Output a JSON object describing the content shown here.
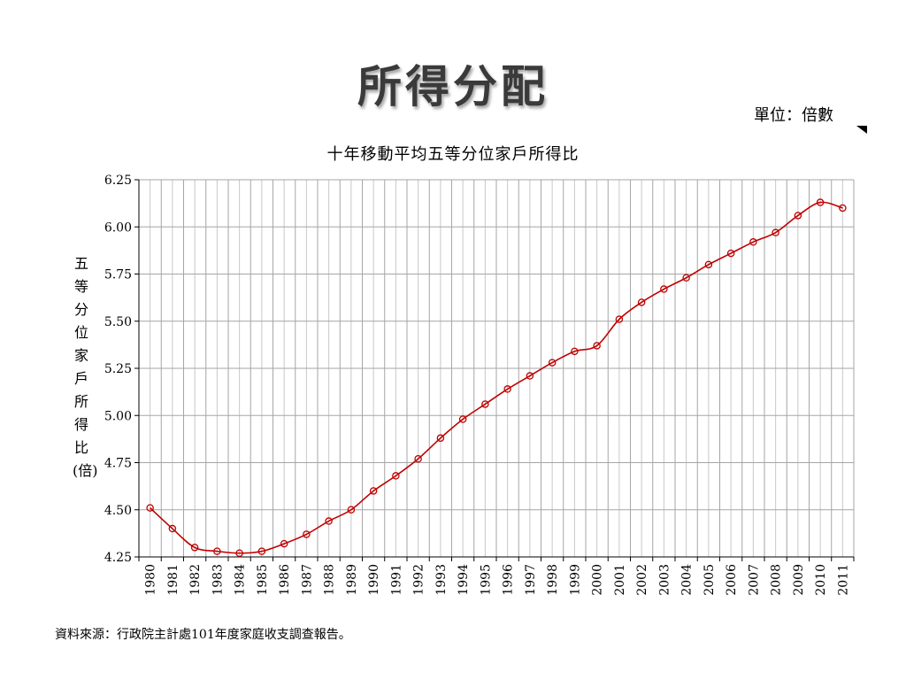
{
  "slide": {
    "title": "所得分配",
    "unit": "單位：倍數",
    "source": "資料來源：行政院主計處101年度家庭收支調查報告。"
  },
  "chart_data": {
    "type": "line",
    "title": "十年移動平均五等分位家戶所得比",
    "ylabel": "五等分位家戶所得比(倍)",
    "xlabel": "",
    "ylim": [
      4.25,
      6.25
    ],
    "yticks": [
      "4.25",
      "4.50",
      "4.75",
      "5.00",
      "5.25",
      "5.50",
      "5.75",
      "6.00",
      "6.25"
    ],
    "x": [
      "1980",
      "1981",
      "1982",
      "1983",
      "1984",
      "1985",
      "1986",
      "1987",
      "1988",
      "1989",
      "1990",
      "1991",
      "1992",
      "1993",
      "1994",
      "1995",
      "1996",
      "1997",
      "1998",
      "1999",
      "2000",
      "2001",
      "2002",
      "2003",
      "2004",
      "2005",
      "2006",
      "2007",
      "2008",
      "2009",
      "2010",
      "2011"
    ],
    "series": [
      {
        "values": [
          4.51,
          4.4,
          4.3,
          4.28,
          4.27,
          4.28,
          4.32,
          4.37,
          4.44,
          4.5,
          4.6,
          4.68,
          4.77,
          4.88,
          4.98,
          5.06,
          5.14,
          5.21,
          5.28,
          5.34,
          5.37,
          5.51,
          5.6,
          5.67,
          5.73,
          5.8,
          5.86,
          5.92,
          5.97,
          6.06,
          6.13,
          6.1
        ]
      }
    ],
    "grid": true,
    "line_color": "#c00000"
  }
}
